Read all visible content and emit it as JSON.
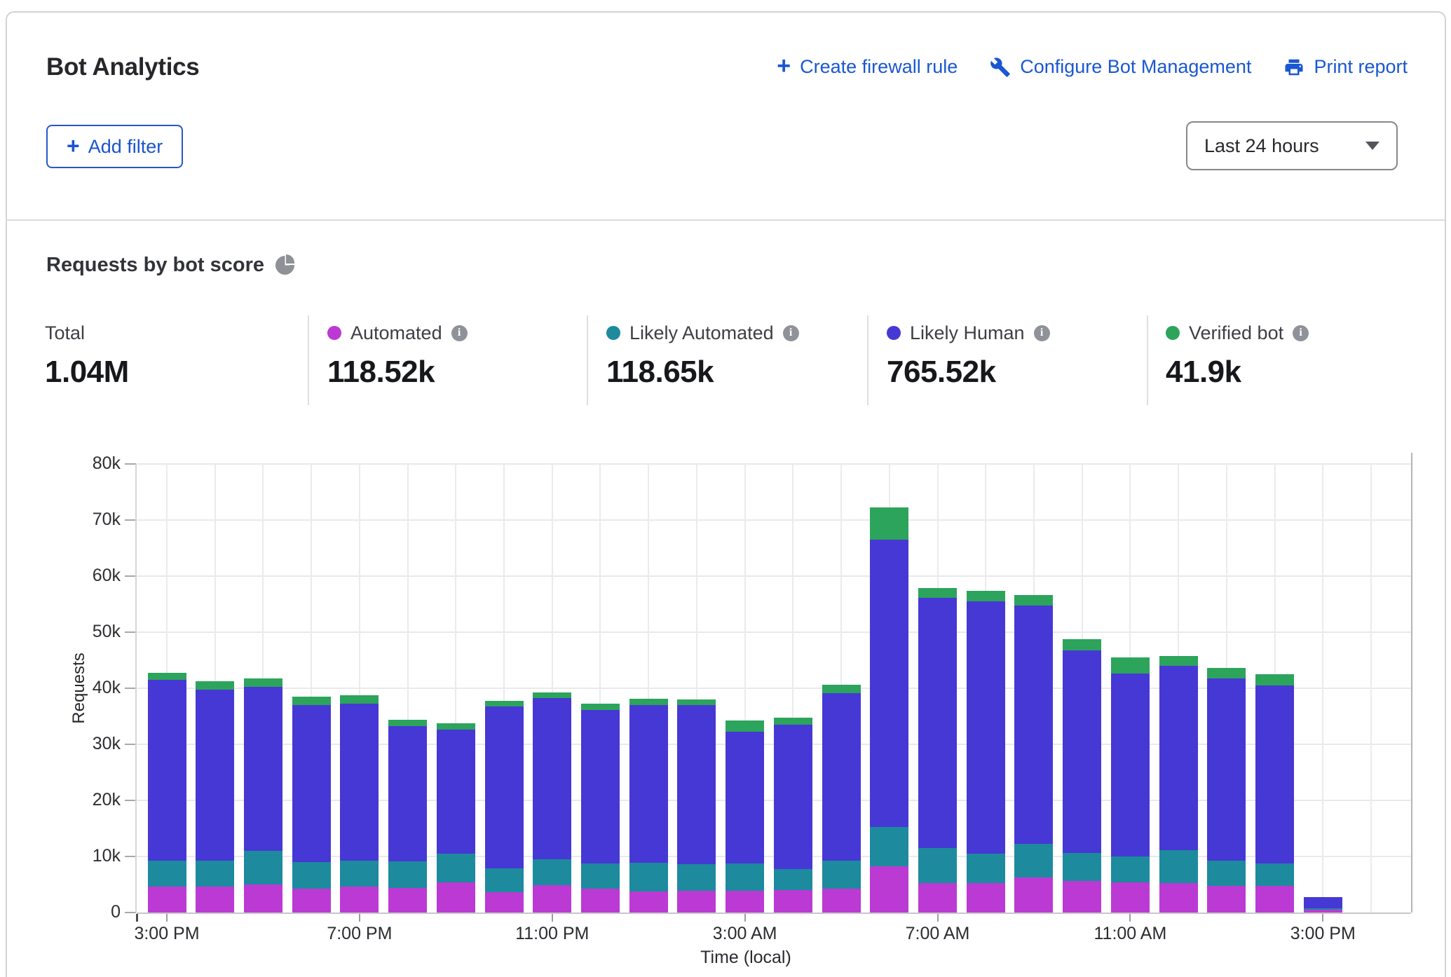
{
  "header": {
    "title": "Bot Analytics",
    "actions": [
      {
        "label": "Create firewall rule",
        "icon": "plus-icon"
      },
      {
        "label": "Configure Bot Management",
        "icon": "wrench-icon"
      },
      {
        "label": "Print report",
        "icon": "printer-icon"
      }
    ],
    "add_filter_label": "Add filter",
    "time_range_selected": "Last 24 hours"
  },
  "section": {
    "title": "Requests by bot score",
    "icon": "pie-chart-icon"
  },
  "summary": {
    "total": {
      "label": "Total",
      "value": "1.04M"
    },
    "legend": [
      {
        "label": "Automated",
        "value": "118.52k",
        "color": "#bb3ad4"
      },
      {
        "label": "Likely Automated",
        "value": "118.65k",
        "color": "#1d8a9e"
      },
      {
        "label": "Likely Human",
        "value": "765.52k",
        "color": "#4638d4"
      },
      {
        "label": "Verified bot",
        "value": "41.9k",
        "color": "#2ca45c"
      }
    ]
  },
  "chart_data": {
    "type": "bar",
    "stacked": true,
    "title": "Requests by bot score",
    "xlabel": "Time (local)",
    "ylabel": "Requests",
    "unit": "thousands of requests per hour",
    "ylim": [
      0,
      80
    ],
    "grid": true,
    "legend_position": "top",
    "y_tick_labels": [
      "0",
      "10k",
      "20k",
      "30k",
      "40k",
      "50k",
      "60k",
      "70k",
      "80k"
    ],
    "x_tick_labels": [
      "3:00 PM",
      "7:00 PM",
      "11:00 PM",
      "3:00 AM",
      "7:00 AM",
      "11:00 AM",
      "3:00 PM"
    ],
    "categories": [
      "3:00 PM",
      "4:00 PM",
      "5:00 PM",
      "6:00 PM",
      "7:00 PM",
      "8:00 PM",
      "9:00 PM",
      "10:00 PM",
      "11:00 PM",
      "12:00 AM",
      "1:00 AM",
      "2:00 AM",
      "3:00 AM",
      "4:00 AM",
      "5:00 AM",
      "6:00 AM",
      "7:00 AM",
      "8:00 AM",
      "9:00 AM",
      "10:00 AM",
      "11:00 AM",
      "12:00 PM",
      "1:00 PM",
      "2:00 PM",
      "3:00 PM"
    ],
    "series": [
      {
        "name": "Automated",
        "color": "#bb3ad4",
        "values": [
          4.6,
          4.6,
          5.0,
          4.3,
          4.6,
          4.4,
          5.4,
          3.6,
          4.9,
          4.2,
          3.7,
          3.9,
          3.9,
          4.0,
          4.2,
          8.3,
          5.3,
          5.2,
          6.2,
          5.6,
          5.4,
          5.2,
          4.8,
          4.7,
          0.5
        ]
      },
      {
        "name": "Likely Automated",
        "color": "#1d8a9e",
        "values": [
          4.6,
          4.7,
          6.0,
          4.7,
          4.7,
          4.7,
          5.1,
          4.3,
          4.6,
          4.5,
          5.2,
          4.7,
          4.8,
          3.7,
          5.1,
          7.0,
          6.2,
          5.3,
          6.1,
          5.0,
          4.6,
          5.9,
          4.4,
          4.1,
          0.3
        ]
      },
      {
        "name": "Likely Human",
        "color": "#4638d4",
        "values": [
          32.3,
          30.5,
          29.2,
          28.0,
          28.0,
          24.2,
          22.1,
          28.8,
          28.8,
          27.4,
          28.1,
          28.4,
          23.6,
          25.8,
          29.8,
          51.2,
          44.6,
          45.0,
          42.4,
          36.2,
          32.6,
          32.9,
          32.6,
          31.7,
          1.9
        ]
      },
      {
        "name": "Verified bot",
        "color": "#2ca45c",
        "values": [
          1.2,
          1.5,
          1.6,
          1.5,
          1.5,
          1.1,
          1.1,
          1.1,
          0.9,
          1.1,
          1.1,
          1.0,
          1.9,
          1.3,
          1.5,
          5.8,
          1.8,
          1.9,
          1.9,
          2.0,
          2.9,
          1.8,
          1.8,
          2.0,
          0.1
        ]
      }
    ]
  }
}
